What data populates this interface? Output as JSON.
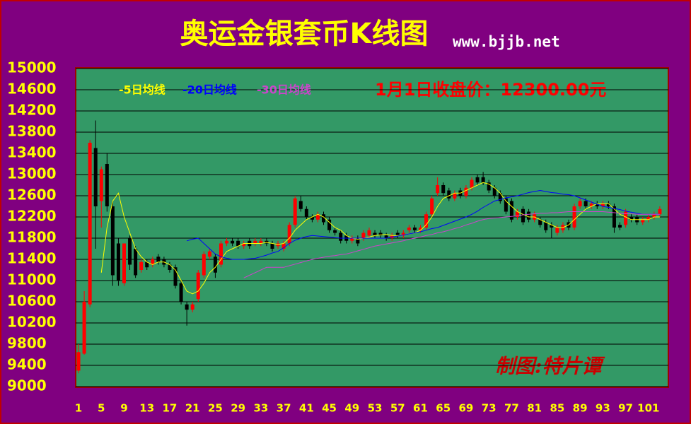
{
  "chart_data": {
    "type": "candlestick",
    "title": "奥运金银套币K线图",
    "subtitle": "www.bjjb.net",
    "annotation": "1月1日收盘价：12300.00元",
    "credit": "制图:特片谭",
    "up_color": "#ff0000",
    "down_color": "#000000",
    "background": "#800080",
    "plot_color": "#339966",
    "grid": true,
    "ylim": [
      9000,
      15000
    ],
    "yticks": [
      9000,
      9400,
      9800,
      10200,
      10600,
      11000,
      11400,
      11800,
      12200,
      12600,
      13000,
      13400,
      13800,
      14200,
      14600,
      15000
    ],
    "xlim": [
      0.5,
      104.5
    ],
    "xticks": [
      1,
      5,
      9,
      13,
      17,
      21,
      25,
      29,
      33,
      37,
      41,
      45,
      49,
      53,
      57,
      61,
      65,
      69,
      73,
      77,
      81,
      85,
      89,
      93,
      97,
      101
    ],
    "ohlc": [
      [
        9300,
        9800,
        9250,
        9650
      ],
      [
        9620,
        10800,
        9600,
        10600
      ],
      [
        10550,
        13650,
        10500,
        13600
      ],
      [
        13500,
        14020,
        11600,
        12400
      ],
      [
        12500,
        13150,
        12000,
        13100
      ],
      [
        13200,
        13400,
        12300,
        12400
      ],
      [
        12400,
        12500,
        10900,
        11100
      ],
      [
        11700,
        11800,
        10900,
        11000
      ],
      [
        10950,
        11700,
        10900,
        11700
      ],
      [
        11800,
        11850,
        11200,
        11300
      ],
      [
        11600,
        11650,
        11050,
        11100
      ],
      [
        11200,
        11400,
        11150,
        11350
      ],
      [
        11350,
        11400,
        11200,
        11250
      ],
      [
        11300,
        11450,
        11250,
        11400
      ],
      [
        11450,
        11500,
        11300,
        11350
      ],
      [
        11400,
        11450,
        11250,
        11300
      ],
      [
        11300,
        11350,
        11150,
        11200
      ],
      [
        11250,
        11300,
        10850,
        10900
      ],
      [
        10950,
        11000,
        10550,
        10600
      ],
      [
        10550,
        10600,
        10150,
        10450
      ],
      [
        10450,
        10600,
        10400,
        10550
      ],
      [
        10650,
        11200,
        10600,
        11150
      ],
      [
        11100,
        11550,
        11050,
        11500
      ],
      [
        11450,
        11600,
        11400,
        11550
      ],
      [
        11450,
        11500,
        11050,
        11150
      ],
      [
        11300,
        11750,
        11250,
        11700
      ],
      [
        11700,
        11800,
        11650,
        11750
      ],
      [
        11750,
        11800,
        11650,
        11700
      ],
      [
        11750,
        11800,
        11600,
        11650
      ],
      [
        11650,
        11750,
        11600,
        11700
      ],
      [
        11750,
        11800,
        11600,
        11650
      ],
      [
        11700,
        11800,
        11650,
        11750
      ],
      [
        11700,
        11800,
        11650,
        11750
      ],
      [
        11750,
        11800,
        11650,
        11700
      ],
      [
        11700,
        11750,
        11550,
        11600
      ],
      [
        11650,
        11750,
        11600,
        11700
      ],
      [
        11600,
        11750,
        11550,
        11700
      ],
      [
        11700,
        12100,
        11650,
        12050
      ],
      [
        12050,
        12600,
        12000,
        12550
      ],
      [
        12500,
        12600,
        12300,
        12350
      ],
      [
        12350,
        12400,
        12150,
        12200
      ],
      [
        12200,
        12250,
        12100,
        12150
      ],
      [
        12150,
        12300,
        12100,
        12250
      ],
      [
        12250,
        12300,
        12050,
        12100
      ],
      [
        12150,
        12200,
        11900,
        11950
      ],
      [
        11950,
        12000,
        11850,
        11900
      ],
      [
        11900,
        11950,
        11700,
        11750
      ],
      [
        11850,
        11900,
        11700,
        11750
      ],
      [
        11750,
        11850,
        11700,
        11800
      ],
      [
        11800,
        11850,
        11650,
        11700
      ],
      [
        11800,
        11950,
        11750,
        11900
      ],
      [
        11850,
        12000,
        11800,
        11950
      ],
      [
        11900,
        11950,
        11800,
        11850
      ],
      [
        11900,
        11950,
        11800,
        11850
      ],
      [
        11850,
        11900,
        11750,
        11800
      ],
      [
        11800,
        11900,
        11750,
        11850
      ],
      [
        11900,
        11950,
        11800,
        11850
      ],
      [
        11850,
        11950,
        11800,
        11900
      ],
      [
        11950,
        12050,
        11900,
        12000
      ],
      [
        12000,
        12050,
        11900,
        11950
      ],
      [
        11950,
        12050,
        11900,
        12000
      ],
      [
        12000,
        12300,
        11950,
        12250
      ],
      [
        12250,
        12600,
        12200,
        12550
      ],
      [
        12650,
        12950,
        12600,
        12800
      ],
      [
        12800,
        12850,
        12600,
        12650
      ],
      [
        12700,
        12750,
        12500,
        12550
      ],
      [
        12550,
        12700,
        12500,
        12650
      ],
      [
        12700,
        12750,
        12550,
        12600
      ],
      [
        12600,
        12800,
        12550,
        12750
      ],
      [
        12750,
        12950,
        12700,
        12900
      ],
      [
        12950,
        13000,
        12800,
        12850
      ],
      [
        12950,
        13050,
        12800,
        12850
      ],
      [
        12850,
        12900,
        12650,
        12700
      ],
      [
        12750,
        12800,
        12550,
        12600
      ],
      [
        12650,
        12700,
        12450,
        12500
      ],
      [
        12550,
        12600,
        12250,
        12300
      ],
      [
        12500,
        12550,
        12100,
        12150
      ],
      [
        12200,
        12350,
        12150,
        12300
      ],
      [
        12350,
        12400,
        12050,
        12100
      ],
      [
        12300,
        12350,
        12100,
        12150
      ],
      [
        12150,
        12300,
        12100,
        12250
      ],
      [
        12150,
        12200,
        12000,
        12050
      ],
      [
        12100,
        12150,
        11900,
        11950
      ],
      [
        12050,
        12100,
        11800,
        12000
      ],
      [
        11900,
        12050,
        11850,
        12000
      ],
      [
        11950,
        12100,
        11900,
        12050
      ],
      [
        12100,
        12150,
        11950,
        12000
      ],
      [
        12000,
        12450,
        11950,
        12400
      ],
      [
        12400,
        12550,
        12350,
        12500
      ],
      [
        12500,
        12550,
        12350,
        12400
      ],
      [
        12400,
        12500,
        12350,
        12450
      ],
      [
        12450,
        12500,
        12350,
        12400
      ],
      [
        12400,
        12500,
        12350,
        12450
      ],
      [
        12450,
        12500,
        12350,
        12400
      ],
      [
        12400,
        12450,
        11900,
        12000
      ],
      [
        12050,
        12100,
        11950,
        12000
      ],
      [
        12050,
        12350,
        12000,
        12300
      ],
      [
        12200,
        12250,
        12100,
        12150
      ],
      [
        12200,
        12250,
        12050,
        12100
      ],
      [
        12100,
        12200,
        12050,
        12150
      ],
      [
        12150,
        12250,
        12100,
        12200
      ],
      [
        12200,
        12300,
        12150,
        12250
      ],
      [
        12250,
        12400,
        12200,
        12350
      ]
    ],
    "series": [
      {
        "name": "-5日均线",
        "color": "#ffff00",
        "values": [
          null,
          null,
          null,
          null,
          11150,
          12000,
          12500,
          12650,
          12200,
          11900,
          11600,
          11450,
          11350,
          11300,
          11350,
          11350,
          11300,
          11200,
          11000,
          10800,
          10750,
          10800,
          10950,
          11150,
          11250,
          11400,
          11550,
          11600,
          11650,
          11700,
          11700,
          11700,
          11700,
          11720,
          11700,
          11680,
          11700,
          11800,
          11950,
          12050,
          12150,
          12200,
          12250,
          12200,
          12100,
          12000,
          11950,
          11850,
          11800,
          11780,
          11800,
          11820,
          11850,
          11860,
          11870,
          11850,
          11850,
          11860,
          11880,
          11900,
          11950,
          12050,
          12200,
          12400,
          12550,
          12600,
          12650,
          12650,
          12700,
          12750,
          12800,
          12850,
          12820,
          12750,
          12650,
          12500,
          12400,
          12300,
          12250,
          12200,
          12200,
          12150,
          12100,
          12050,
          12000,
          12000,
          12050,
          12150,
          12250,
          12350,
          12400,
          12450,
          12450,
          12450,
          12350,
          12250,
          12200,
          12150,
          12150,
          12150,
          12150,
          12200,
          12200
        ]
      },
      {
        "name": "-20日均线",
        "color": "#0000ff",
        "values": [
          null,
          null,
          null,
          null,
          null,
          null,
          null,
          null,
          null,
          null,
          null,
          null,
          null,
          null,
          null,
          null,
          null,
          null,
          null,
          11750,
          11780,
          11800,
          11700,
          11600,
          11500,
          11450,
          11420,
          11400,
          11400,
          11400,
          11410,
          11420,
          11450,
          11480,
          11520,
          11550,
          11620,
          11700,
          11760,
          11800,
          11830,
          11850,
          11840,
          11830,
          11820,
          11810,
          11800,
          11800,
          11800,
          11800,
          11800,
          11800,
          11800,
          11800,
          11800,
          11820,
          11840,
          11860,
          11880,
          11900,
          11920,
          11950,
          11980,
          12000,
          12040,
          12080,
          12120,
          12160,
          12200,
          12250,
          12310,
          12380,
          12440,
          12500,
          12530,
          12560,
          12580,
          12600,
          12630,
          12660,
          12680,
          12700,
          12680,
          12660,
          12650,
          12630,
          12620,
          12600,
          12560,
          12520,
          12480,
          12440,
          12400,
          12380,
          12360,
          12340,
          12310,
          12290,
          12270,
          12250,
          12250,
          12250,
          12250
        ]
      },
      {
        "name": "-30日均线",
        "color": "#cc44cc",
        "values": [
          null,
          null,
          null,
          null,
          null,
          null,
          null,
          null,
          null,
          null,
          null,
          null,
          null,
          null,
          null,
          null,
          null,
          null,
          null,
          null,
          null,
          null,
          null,
          null,
          null,
          null,
          null,
          null,
          null,
          11050,
          11100,
          11150,
          11200,
          11250,
          11250,
          11250,
          11250,
          11280,
          11310,
          11340,
          11370,
          11400,
          11420,
          11440,
          11460,
          11470,
          11490,
          11500,
          11530,
          11560,
          11590,
          11620,
          11650,
          11670,
          11690,
          11710,
          11730,
          11750,
          11780,
          11800,
          11820,
          11850,
          11870,
          11900,
          11920,
          11950,
          11980,
          12010,
          12050,
          12080,
          12120,
          12150,
          12170,
          12180,
          12190,
          12200,
          12210,
          12220,
          12240,
          12250,
          12260,
          12270,
          12270,
          12280,
          12280,
          12290,
          12300,
          12300,
          12300,
          12300,
          12300,
          12300,
          12300,
          12290,
          12280,
          12270,
          12260,
          12260,
          12250,
          12250,
          12250,
          12250,
          12250
        ]
      }
    ]
  }
}
